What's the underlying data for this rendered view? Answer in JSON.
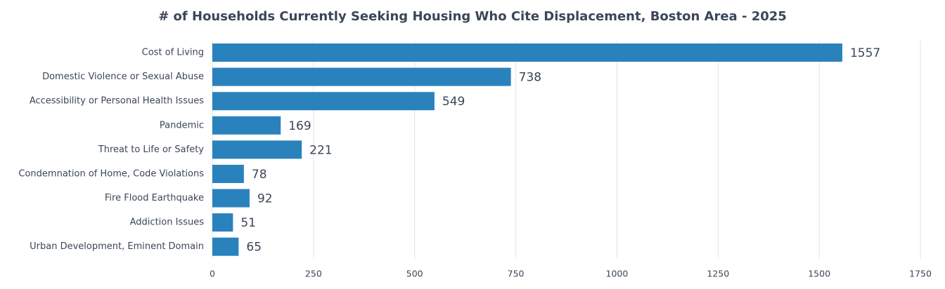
{
  "chart_data": {
    "type": "bar",
    "orientation": "horizontal",
    "title": "# of Households Currently Seeking Housing Who Cite Displacement, Boston Area - 2025",
    "categories": [
      "Cost of Living",
      "Domestic Violence or Sexual Abuse",
      "Accessibility or Personal Health Issues",
      "Pandemic",
      "Threat to Life or Safety",
      "Condemnation of Home, Code Violations",
      "Fire Flood Earthquake",
      "Addiction Issues",
      "Urban Development, Eminent Domain"
    ],
    "values": [
      1557,
      738,
      549,
      169,
      221,
      78,
      92,
      51,
      65
    ],
    "color": "#2a82bd",
    "xlim": [
      0,
      1750
    ],
    "xticks": [
      0,
      250,
      500,
      750,
      1000,
      1250,
      1500,
      1750
    ],
    "grid": true
  }
}
